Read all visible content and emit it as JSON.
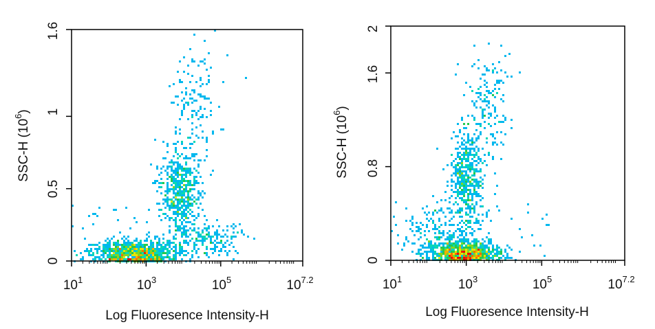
{
  "chart_data": [
    {
      "type": "scatter",
      "title": "",
      "xlabel": "Log Fluoresence Intensity-H",
      "ylabel": "SSC-H (10⁶)",
      "ylabel_main": "SSC-H",
      "ylabel_unit_base": "(10",
      "ylabel_unit_exp": "6",
      "ylabel_unit_close": ")",
      "x_scale": "log10",
      "xlim": [
        1,
        7.2
      ],
      "ylim": [
        0,
        1.6
      ],
      "x_ticks": [
        {
          "value": 1,
          "base": "10",
          "exp": "1"
        },
        {
          "value": 3,
          "base": "10",
          "exp": "3"
        },
        {
          "value": 5,
          "base": "10",
          "exp": "5"
        },
        {
          "value": 7.2,
          "base": "10",
          "exp": "7.2"
        }
      ],
      "y_ticks": [
        {
          "value": 0,
          "label": "0"
        },
        {
          "value": 0.5,
          "label": "0.5"
        },
        {
          "value": 1,
          "label": "1"
        },
        {
          "value": 1.6,
          "label": "1.6"
        }
      ],
      "color_scale": "density (blue-cyan-green-yellow-red)",
      "populations": [
        {
          "name": "",
          "center_log_x": 2.7,
          "center_y": 0.05,
          "spread_log_x": 0.55,
          "spread_y": 0.045
        },
        {
          "name": "",
          "center_log_x": 3.9,
          "center_y": 0.48,
          "spread_log_x": 0.28,
          "spread_y": 0.14
        },
        {
          "name": "",
          "center_log_x": 4.3,
          "center_y": 1.05,
          "spread_log_x": 0.35,
          "spread_y": 0.25
        },
        {
          "name": "",
          "center_log_x": 4.6,
          "center_y": 0.15,
          "spread_log_x": 0.45,
          "spread_y": 0.06
        }
      ]
    },
    {
      "type": "scatter",
      "title": "",
      "xlabel": "Log Fluoresence Intensity-H",
      "ylabel": "SSC-H (10⁶)",
      "ylabel_main": "SSC-H",
      "ylabel_unit_base": "(10",
      "ylabel_unit_exp": "6",
      "ylabel_unit_close": ")",
      "x_scale": "log10",
      "xlim": [
        1,
        7.2
      ],
      "ylim": [
        0,
        2
      ],
      "x_ticks": [
        {
          "value": 1,
          "base": "10",
          "exp": "1"
        },
        {
          "value": 3,
          "base": "10",
          "exp": "3"
        },
        {
          "value": 5,
          "base": "10",
          "exp": "5"
        },
        {
          "value": 7.2,
          "base": "10",
          "exp": "7.2"
        }
      ],
      "y_ticks": [
        {
          "value": 0,
          "label": "0"
        },
        {
          "value": 0.8,
          "label": "0.8"
        },
        {
          "value": 1.6,
          "label": "1.6"
        },
        {
          "value": 2,
          "label": "2"
        }
      ],
      "color_scale": "density (blue-cyan-green-yellow-red)",
      "populations": [
        {
          "name": "",
          "center_log_x": 3.0,
          "center_y": 0.06,
          "spread_log_x": 0.45,
          "spread_y": 0.05
        },
        {
          "name": "",
          "center_log_x": 3.0,
          "center_y": 0.7,
          "spread_log_x": 0.25,
          "spread_y": 0.22
        },
        {
          "name": "",
          "center_log_x": 3.6,
          "center_y": 1.3,
          "spread_log_x": 0.3,
          "spread_y": 0.25
        },
        {
          "name": "",
          "center_log_x": 2.3,
          "center_y": 0.2,
          "spread_log_x": 0.5,
          "spread_y": 0.1
        }
      ]
    }
  ]
}
